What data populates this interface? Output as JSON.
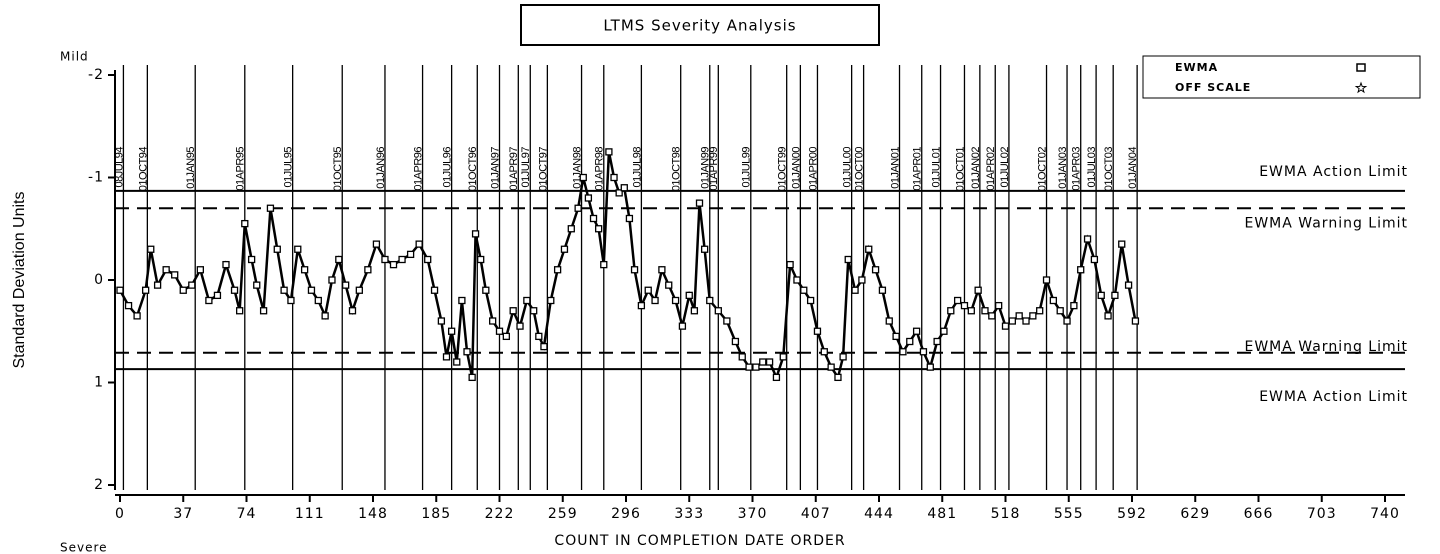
{
  "chart_data": {
    "type": "line",
    "title": "LTMS Severity Analysis",
    "xlabel": "COUNT IN COMPLETION DATE ORDER",
    "ylabel": "Standard Deviation Units",
    "top_note": "Mild",
    "bottom_note": "Severe",
    "xlim": [
      0,
      740
    ],
    "xticks": [
      0,
      37,
      74,
      111,
      148,
      185,
      222,
      259,
      296,
      333,
      370,
      407,
      444,
      481,
      518,
      555,
      592,
      629,
      666,
      703,
      740
    ],
    "ylim": [
      -2,
      2
    ],
    "y_reversed": true,
    "yticks": [
      -2,
      -1,
      0,
      1,
      2
    ],
    "legend": [
      {
        "name": "EWMA",
        "marker": "square"
      },
      {
        "name": "OFF SCALE",
        "marker": "star"
      }
    ],
    "series": [
      {
        "name": "EWMA",
        "color": "#000000",
        "x": [
          0,
          5,
          10,
          15,
          18,
          22,
          27,
          32,
          37,
          42,
          47,
          52,
          57,
          62,
          67,
          70,
          73,
          77,
          80,
          84,
          88,
          92,
          96,
          100,
          104,
          108,
          112,
          116,
          120,
          124,
          128,
          132,
          136,
          140,
          145,
          150,
          155,
          160,
          165,
          170,
          175,
          180,
          184,
          188,
          191,
          194,
          197,
          200,
          203,
          206,
          208,
          211,
          214,
          218,
          222,
          226,
          230,
          234,
          238,
          242,
          245,
          248,
          252,
          256,
          260,
          264,
          268,
          271,
          274,
          277,
          280,
          283,
          286,
          289,
          292,
          295,
          298,
          301,
          305,
          309,
          313,
          317,
          321,
          325,
          329,
          333,
          336,
          339,
          342,
          345,
          350,
          355,
          360,
          364,
          368,
          372,
          376,
          380,
          384,
          388,
          392,
          396,
          400,
          404,
          408,
          412,
          416,
          420,
          423,
          426,
          430,
          434,
          438,
          442,
          446,
          450,
          454,
          458,
          462,
          466,
          470,
          474,
          478,
          482,
          486,
          490,
          494,
          498,
          502,
          506,
          510,
          514,
          518,
          522,
          526,
          530,
          534,
          538,
          542,
          546,
          550,
          554,
          558,
          562,
          566,
          570,
          574,
          578,
          582,
          586,
          590,
          594
        ],
        "values": [
          0.1,
          0.25,
          0.35,
          0.1,
          -0.3,
          0.05,
          -0.1,
          -0.05,
          0.1,
          0.05,
          -0.1,
          0.2,
          0.15,
          -0.15,
          0.1,
          0.3,
          -0.55,
          -0.2,
          0.05,
          0.3,
          -0.7,
          -0.3,
          0.1,
          0.2,
          -0.3,
          -0.1,
          0.1,
          0.2,
          0.35,
          0.0,
          -0.2,
          0.05,
          0.3,
          0.1,
          -0.1,
          -0.35,
          -0.2,
          -0.15,
          -0.2,
          -0.25,
          -0.35,
          -0.2,
          0.1,
          0.4,
          0.75,
          0.5,
          0.8,
          0.2,
          0.7,
          0.95,
          -0.45,
          -0.2,
          0.1,
          0.4,
          0.5,
          0.55,
          0.3,
          0.45,
          0.2,
          0.3,
          0.55,
          0.65,
          0.2,
          -0.1,
          -0.3,
          -0.5,
          -0.7,
          -1.0,
          -0.8,
          -0.6,
          -0.5,
          -0.15,
          -1.25,
          -1.0,
          -0.85,
          -0.9,
          -0.6,
          -0.1,
          0.25,
          0.1,
          0.2,
          -0.1,
          0.05,
          0.2,
          0.45,
          0.15,
          0.3,
          -0.75,
          -0.3,
          0.2,
          0.3,
          0.4,
          0.6,
          0.75,
          0.85,
          0.85,
          0.8,
          0.8,
          0.95,
          0.75,
          -0.15,
          0.0,
          0.1,
          0.2,
          0.5,
          0.7,
          0.85,
          0.95,
          0.75,
          -0.2,
          0.1,
          0.0,
          -0.3,
          -0.1,
          0.1,
          0.4,
          0.55,
          0.7,
          0.6,
          0.5,
          0.7,
          0.85,
          0.6,
          0.5,
          0.3,
          0.2,
          0.25,
          0.3,
          0.1,
          0.3,
          0.35,
          0.25,
          0.45,
          0.4,
          0.35,
          0.4,
          0.35,
          0.3,
          0.0,
          0.2,
          0.3,
          0.4,
          0.25,
          -0.1,
          -0.4,
          -0.2,
          0.15,
          0.35,
          0.15,
          -0.35,
          0.05,
          0.4
        ]
      }
    ],
    "reference_lines": [
      {
        "value": -0.87,
        "label": "EWMA Action Limit",
        "style": "solid"
      },
      {
        "value": -0.7,
        "label": "EWMA Warning Limit",
        "style": "dashed"
      },
      {
        "value": 0.71,
        "label": "EWMA Warning Limit",
        "style": "dashed"
      },
      {
        "value": 0.87,
        "label": "EWMA Action Limit",
        "style": "solid"
      }
    ],
    "date_lines": [
      {
        "x": 2,
        "label": "08JUL94"
      },
      {
        "x": 16,
        "label": "01OCT94"
      },
      {
        "x": 44,
        "label": "01JAN95"
      },
      {
        "x": 73,
        "label": "01APR95"
      },
      {
        "x": 101,
        "label": "01JUL95"
      },
      {
        "x": 130,
        "label": "01OCT95"
      },
      {
        "x": 155,
        "label": "01JAN96"
      },
      {
        "x": 177,
        "label": "01APR96"
      },
      {
        "x": 194,
        "label": "01JUL96"
      },
      {
        "x": 209,
        "label": "01OCT96"
      },
      {
        "x": 222,
        "label": "01JAN97"
      },
      {
        "x": 233,
        "label": "01APR97"
      },
      {
        "x": 240,
        "label": "01JUL97"
      },
      {
        "x": 250,
        "label": "01OCT97"
      },
      {
        "x": 270,
        "label": "01JAN98"
      },
      {
        "x": 283,
        "label": "01APR98"
      },
      {
        "x": 305,
        "label": "01JUL98"
      },
      {
        "x": 328,
        "label": "01OCT98"
      },
      {
        "x": 345,
        "label": "01JAN99"
      },
      {
        "x": 350,
        "label": "01APR99"
      },
      {
        "x": 369,
        "label": "01JUL99"
      },
      {
        "x": 390,
        "label": "01OCT99"
      },
      {
        "x": 398,
        "label": "01JAN00"
      },
      {
        "x": 408,
        "label": "01APR00"
      },
      {
        "x": 428,
        "label": "01JUL00"
      },
      {
        "x": 435,
        "label": "01OCT00"
      },
      {
        "x": 456,
        "label": "01JAN01"
      },
      {
        "x": 469,
        "label": "01APR01"
      },
      {
        "x": 480,
        "label": "01JUL01"
      },
      {
        "x": 494,
        "label": "01OCT01"
      },
      {
        "x": 503,
        "label": "01JAN02"
      },
      {
        "x": 512,
        "label": "01APR02"
      },
      {
        "x": 520,
        "label": "01JUL02"
      },
      {
        "x": 542,
        "label": "01OCT02"
      },
      {
        "x": 554,
        "label": "01JAN03"
      },
      {
        "x": 562,
        "label": "01APR03"
      },
      {
        "x": 571,
        "label": "01JUL03"
      },
      {
        "x": 581,
        "label": "01OCT03"
      },
      {
        "x": 595,
        "label": "01JAN04"
      }
    ]
  }
}
